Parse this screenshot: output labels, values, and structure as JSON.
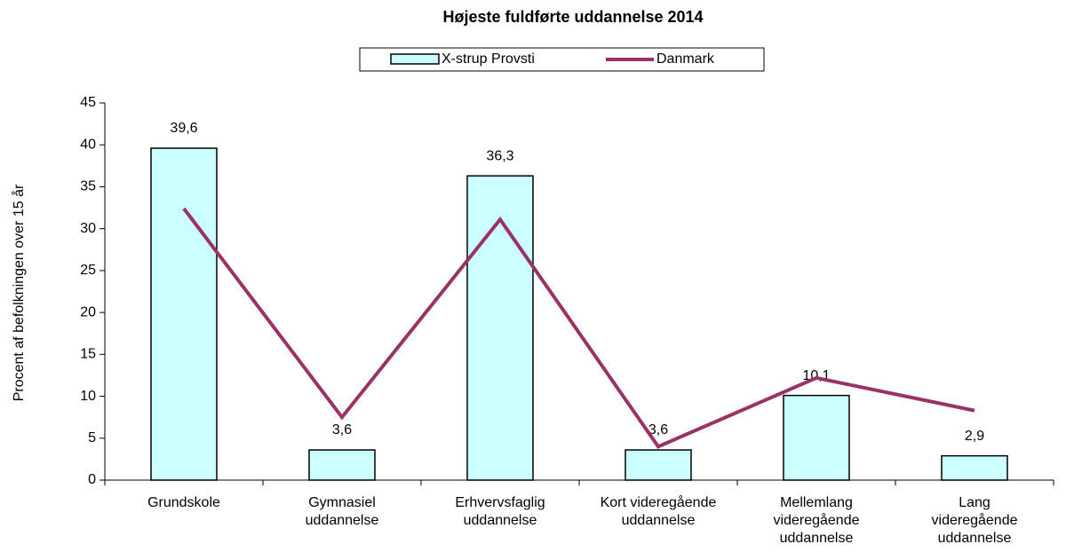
{
  "chart_data": {
    "type": "bar_line",
    "title": "Højeste fuldførte uddannelse 2014",
    "y_label": "Procent af befolkningen over 15 år",
    "categories": [
      "Grundskole",
      "Gymnasiel\nuddannelse",
      "Erhvervsfaglig\nuddannelse",
      "Kort videregående\nuddannelse",
      "Mellemlang\nvideregående\nuddannelse",
      "Lang\nvideregående\nuddannelse"
    ],
    "series": [
      {
        "name": "X-strup Provsti",
        "type": "bar",
        "color": "#ccffff",
        "values": [
          39.6,
          3.6,
          36.3,
          3.6,
          10.1,
          2.9
        ],
        "value_labels": [
          "39,6",
          "3,6",
          "36,3",
          "3,6",
          "10,1",
          "2,9"
        ]
      },
      {
        "name": "Danmark",
        "type": "line",
        "color": "#993366",
        "values": [
          32.4,
          7.5,
          31.1,
          4.0,
          12.2,
          8.3
        ]
      }
    ],
    "ylim": [
      0,
      45
    ],
    "yticks": [
      0,
      5,
      10,
      15,
      20,
      25,
      30,
      35,
      40,
      45
    ],
    "grid": false
  }
}
